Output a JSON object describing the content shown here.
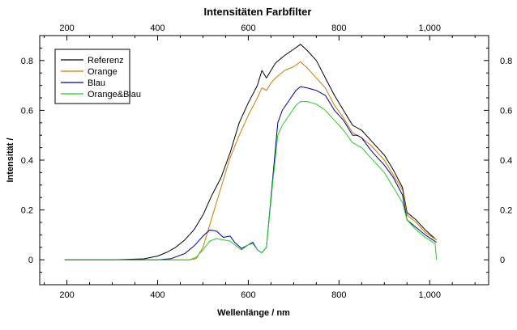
{
  "chart_data": {
    "type": "line",
    "title": "Intensitäten Farbfilter",
    "xlabel": "Wellenlänge / nm",
    "ylabel": "Intensität /",
    "xlim": [
      140,
      1130
    ],
    "ylim": [
      -0.1,
      0.9
    ],
    "xticks": [
      200,
      400,
      600,
      800,
      1000
    ],
    "xtick_labels": [
      "200",
      "400",
      "600",
      "800",
      "1,000"
    ],
    "yticks": [
      0,
      0.2,
      0.4,
      0.6,
      0.8
    ],
    "ytick_labels": [
      "0",
      "0.2",
      "0.4",
      "0.6",
      "0.8"
    ],
    "grid": false,
    "legend_position": "top-left",
    "series": [
      {
        "name": "Referenz",
        "color": "#000000",
        "x": [
          195,
          300,
          370,
          400,
          420,
          440,
          460,
          480,
          500,
          520,
          540,
          560,
          580,
          600,
          620,
          630,
          640,
          650,
          660,
          680,
          700,
          715,
          730,
          750,
          770,
          790,
          810,
          830,
          840,
          850,
          870,
          900,
          920,
          940,
          950,
          970,
          990,
          1015
        ],
        "y": [
          0.0,
          0.0,
          0.004,
          0.015,
          0.03,
          0.05,
          0.08,
          0.12,
          0.18,
          0.26,
          0.33,
          0.43,
          0.55,
          0.63,
          0.7,
          0.76,
          0.73,
          0.76,
          0.79,
          0.82,
          0.845,
          0.865,
          0.84,
          0.8,
          0.73,
          0.66,
          0.6,
          0.54,
          0.53,
          0.52,
          0.48,
          0.42,
          0.36,
          0.29,
          0.19,
          0.16,
          0.12,
          0.08
        ]
      },
      {
        "name": "Orange",
        "color": "#cc7a00",
        "x": [
          195,
          470,
          485,
          500,
          520,
          540,
          560,
          580,
          600,
          620,
          630,
          640,
          650,
          660,
          680,
          700,
          715,
          730,
          750,
          770,
          790,
          810,
          830,
          840,
          850,
          870,
          900,
          920,
          940,
          950,
          970,
          990,
          1015
        ],
        "y": [
          0.0,
          0.0,
          0.005,
          0.05,
          0.17,
          0.29,
          0.41,
          0.5,
          0.58,
          0.65,
          0.69,
          0.68,
          0.71,
          0.73,
          0.76,
          0.775,
          0.795,
          0.77,
          0.73,
          0.69,
          0.62,
          0.57,
          0.51,
          0.5,
          0.49,
          0.46,
          0.4,
          0.34,
          0.28,
          0.18,
          0.15,
          0.11,
          0.08
        ]
      },
      {
        "name": "Blau",
        "color": "#00008b",
        "x": [
          195,
          400,
          430,
          460,
          480,
          500,
          515,
          530,
          545,
          560,
          570,
          585,
          600,
          610,
          620,
          630,
          640,
          655,
          665,
          675,
          690,
          705,
          715,
          730,
          750,
          770,
          790,
          810,
          830,
          840,
          850,
          870,
          900,
          920,
          940,
          950,
          970,
          990,
          1015
        ],
        "y": [
          0.0,
          0.0,
          0.005,
          0.025,
          0.055,
          0.095,
          0.12,
          0.115,
          0.09,
          0.095,
          0.07,
          0.045,
          0.06,
          0.07,
          0.04,
          0.028,
          0.05,
          0.35,
          0.55,
          0.6,
          0.64,
          0.68,
          0.695,
          0.69,
          0.68,
          0.66,
          0.6,
          0.56,
          0.5,
          0.5,
          0.49,
          0.44,
          0.38,
          0.33,
          0.26,
          0.16,
          0.13,
          0.1,
          0.07
        ]
      },
      {
        "name": "Orange&Blau",
        "color": "#22cc22",
        "x": [
          195,
          470,
          485,
          500,
          515,
          530,
          545,
          560,
          570,
          585,
          600,
          610,
          620,
          630,
          640,
          655,
          665,
          675,
          690,
          705,
          715,
          730,
          750,
          770,
          790,
          810,
          830,
          840,
          850,
          870,
          900,
          920,
          940,
          950,
          970,
          990,
          1012,
          1015
        ],
        "y": [
          0.0,
          0.0,
          0.01,
          0.04,
          0.075,
          0.085,
          0.08,
          0.075,
          0.06,
          0.04,
          0.06,
          0.065,
          0.04,
          0.028,
          0.05,
          0.33,
          0.5,
          0.54,
          0.58,
          0.62,
          0.635,
          0.635,
          0.625,
          0.6,
          0.56,
          0.52,
          0.47,
          0.46,
          0.45,
          0.41,
          0.35,
          0.29,
          0.23,
          0.16,
          0.12,
          0.09,
          0.065,
          0.0
        ]
      }
    ]
  }
}
